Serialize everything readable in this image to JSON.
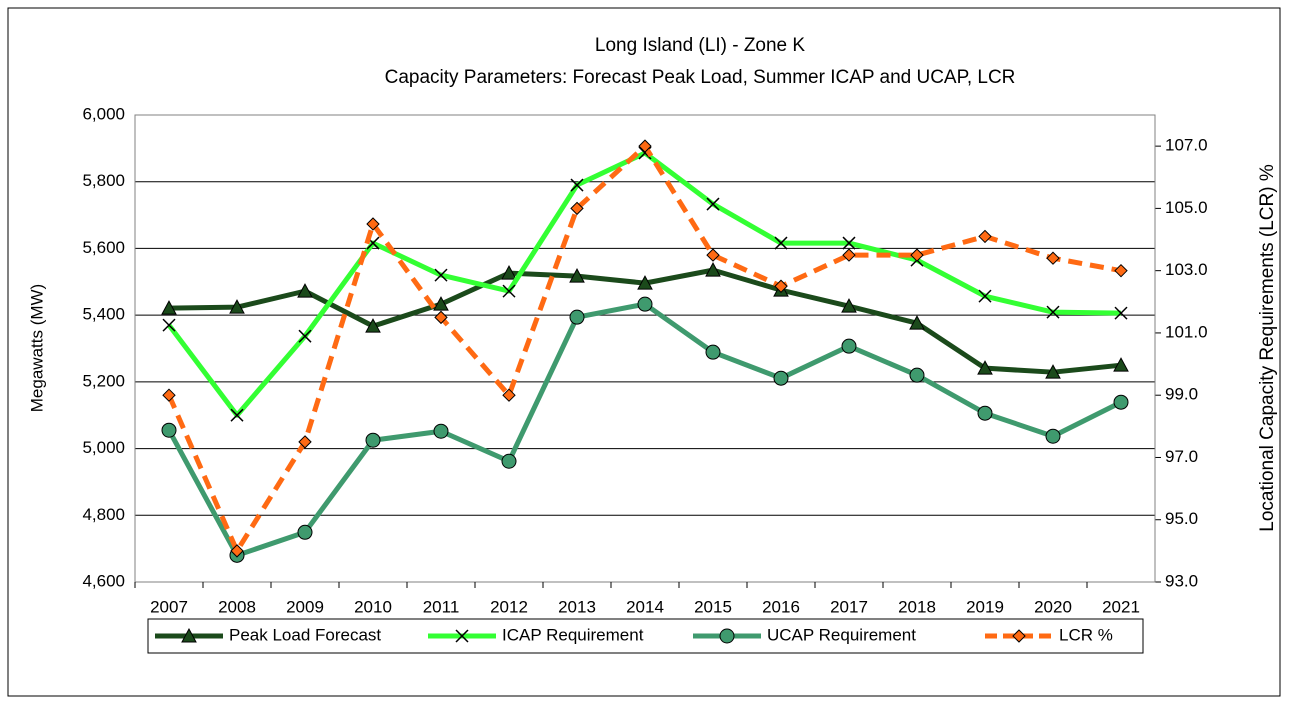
{
  "chart_data": {
    "type": "line",
    "title": "Long Island (LI) - Zone K",
    "subtitle": "Capacity Parameters: Forecast Peak Load, Summer ICAP and UCAP, LCR",
    "y_label": "Megawatts (MW)",
    "y2_label": "Locational Capacity Requirements (LCR) %",
    "categories": [
      "2007",
      "2008",
      "2009",
      "2010",
      "2011",
      "2012",
      "2013",
      "2014",
      "2015",
      "2016",
      "2017",
      "2018",
      "2019",
      "2020",
      "2021"
    ],
    "series": [
      {
        "name": "Peak Load Forecast",
        "color": "#1b4a1b",
        "marker": "triangle",
        "dashed": false,
        "values": [
          5421,
          5424,
          5472,
          5367,
          5433,
          5526,
          5517,
          5496,
          5535,
          5475,
          5427,
          5376,
          5241,
          5229,
          5250
        ]
      },
      {
        "name": "ICAP Requirement",
        "color": "#33ff33",
        "marker": "x",
        "dashed": false,
        "values": [
          5370,
          5100,
          5337,
          5616,
          5520,
          5472,
          5790,
          5886,
          5733,
          5616,
          5616,
          5565,
          5457,
          5409,
          5406
        ]
      },
      {
        "name": "UCAP Requirement",
        "color": "#3f9a6e",
        "marker": "circle",
        "dashed": false,
        "values": [
          5055,
          4680,
          4749,
          5025,
          5052,
          4962,
          5394,
          5433,
          5289,
          5211,
          5307,
          5220,
          5106,
          5037,
          5139
        ]
      },
      {
        "name": "LCR %",
        "color": "#ff6a13",
        "marker": "diamond",
        "dashed": true,
        "axis": "y2",
        "values": [
          99.0,
          94.0,
          97.5,
          104.5,
          101.5,
          99.0,
          105.0,
          107.0,
          103.5,
          102.5,
          103.5,
          103.5,
          104.1,
          103.4,
          103.0
        ]
      }
    ],
    "ylim": [
      4600,
      6000
    ],
    "yticks": [
      {
        "value": 4600,
        "label": "4,600"
      },
      {
        "value": 4800,
        "label": "4,800"
      },
      {
        "value": 5000,
        "label": "5,000"
      },
      {
        "value": 5200,
        "label": "5,200"
      },
      {
        "value": 5400,
        "label": "5,400"
      },
      {
        "value": 5600,
        "label": "5,600"
      },
      {
        "value": 5800,
        "label": "5,800"
      },
      {
        "value": 6000,
        "label": "6,000"
      }
    ],
    "y2lim": [
      93,
      108
    ],
    "y2ticks": [
      {
        "value": 93,
        "label": "93.0"
      },
      {
        "value": 95,
        "label": "95.0"
      },
      {
        "value": 97,
        "label": "97.0"
      },
      {
        "value": 99,
        "label": "99.0"
      },
      {
        "value": 101,
        "label": "101.0"
      },
      {
        "value": 103,
        "label": "103.0"
      },
      {
        "value": 105,
        "label": "105.0"
      },
      {
        "value": 107,
        "label": "107.0"
      }
    ],
    "grid": true,
    "legend": "bottom"
  }
}
